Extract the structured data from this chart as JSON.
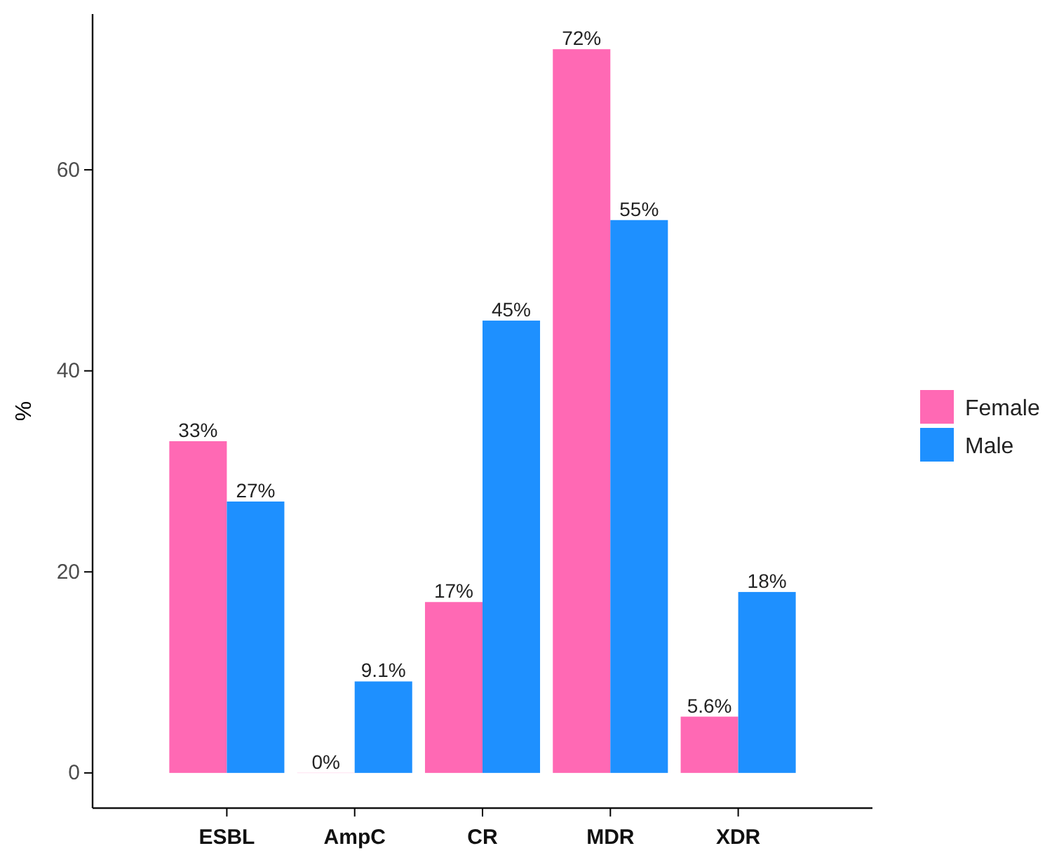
{
  "chart_data": {
    "type": "bar",
    "ylabel": "%",
    "categories": [
      "ESBL",
      "AmpC",
      "CR",
      "MDR",
      "XDR"
    ],
    "series": [
      {
        "name": "Female",
        "color": "#ff69b4",
        "values": [
          33,
          0,
          17,
          72,
          5.6
        ],
        "value_labels": [
          "33%",
          "0%",
          "17%",
          "72%",
          "5.6%"
        ]
      },
      {
        "name": "Male",
        "color": "#1e90ff",
        "values": [
          27,
          9.1,
          45,
          55,
          18
        ],
        "value_labels": [
          "27%",
          "9.1%",
          "45%",
          "55%",
          "18%"
        ]
      }
    ],
    "ylim": [
      -3.5,
      75.5
    ],
    "yticks": [
      0,
      20,
      40,
      60
    ],
    "grid": false,
    "legend": "right"
  }
}
